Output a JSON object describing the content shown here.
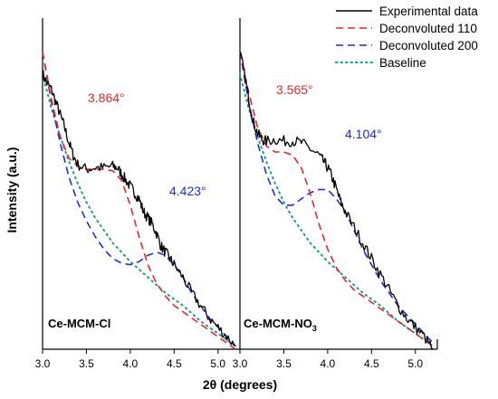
{
  "chart_data": {
    "type": "line",
    "xlabel": "2θ (degrees)",
    "ylabel": "Intensity (a.u.)",
    "colors": {
      "experimental": "#000000",
      "d110": "#e8262b",
      "d200": "#1a2fd6",
      "baseline": "#15a08a"
    },
    "legend": {
      "placement": "top-right",
      "entries": [
        {
          "key": "experimental",
          "label": "Experimental data",
          "style": "solid"
        },
        {
          "key": "d110",
          "label": "Deconvoluted 110",
          "style": "dashed"
        },
        {
          "key": "d200",
          "label": "Deconvoluted 200",
          "style": "dashed"
        },
        {
          "key": "baseline",
          "label": "Baseline",
          "style": "dotted"
        }
      ]
    },
    "panels": [
      {
        "title": "Ce-MCM-Cl",
        "xlim": [
          3.0,
          5.25
        ],
        "xticks": [
          "3.0",
          "3.5",
          "4.0",
          "4.5",
          "5.0"
        ],
        "xtick_values": [
          3.0,
          3.5,
          4.0,
          4.5,
          5.0
        ],
        "peak_110": {
          "label": "3.864°",
          "x": 3.864
        },
        "peak_200": {
          "label": "4.423°",
          "x": 4.423
        },
        "series": {
          "experimental": {
            "x": [
              3.0,
              3.05,
              3.1,
              3.15,
              3.2,
              3.25,
              3.3,
              3.35,
              3.4,
              3.5,
              3.6,
              3.7,
              3.8,
              3.85,
              3.9,
              3.95,
              4.0,
              4.05,
              4.1,
              4.15,
              4.2,
              4.25,
              4.3,
              4.35,
              4.4,
              4.45,
              4.5,
              4.6,
              4.7,
              4.8,
              4.9,
              5.0,
              5.1,
              5.2
            ],
            "y": [
              0.88,
              0.85,
              0.83,
              0.79,
              0.75,
              0.71,
              0.66,
              0.62,
              0.59,
              0.575,
              0.58,
              0.58,
              0.585,
              0.58,
              0.56,
              0.54,
              0.52,
              0.5,
              0.48,
              0.44,
              0.42,
              0.4,
              0.37,
              0.33,
              0.31,
              0.29,
              0.27,
              0.23,
              0.18,
              0.14,
              0.1,
              0.07,
              0.04,
              0.01
            ]
          },
          "d110": {
            "x": [
              3.0,
              3.1,
              3.2,
              3.3,
              3.4,
              3.5,
              3.6,
              3.7,
              3.8,
              3.9,
              4.0,
              4.1,
              4.2,
              4.3,
              4.4,
              4.5,
              4.6,
              4.7,
              4.8,
              4.9,
              5.0,
              5.1,
              5.2
            ],
            "y": [
              0.95,
              0.8,
              0.68,
              0.61,
              0.585,
              0.575,
              0.575,
              0.575,
              0.57,
              0.54,
              0.46,
              0.36,
              0.27,
              0.21,
              0.17,
              0.14,
              0.12,
              0.1,
              0.08,
              0.06,
              0.04,
              0.02,
              0.0
            ]
          },
          "d200": {
            "x": [
              3.0,
              3.1,
              3.2,
              3.3,
              3.4,
              3.5,
              3.6,
              3.7,
              3.8,
              3.9,
              4.0,
              4.1,
              4.2,
              4.3,
              4.4,
              4.5,
              4.6,
              4.7,
              4.8,
              4.9,
              5.0,
              5.1,
              5.2
            ],
            "y": [
              0.95,
              0.79,
              0.66,
              0.55,
              0.47,
              0.41,
              0.36,
              0.32,
              0.29,
              0.275,
              0.27,
              0.28,
              0.3,
              0.31,
              0.3,
              0.27,
              0.23,
              0.18,
              0.14,
              0.1,
              0.07,
              0.04,
              0.01
            ]
          },
          "baseline": {
            "x": [
              3.0,
              3.1,
              3.2,
              3.3,
              3.4,
              3.5,
              3.6,
              3.7,
              3.8,
              3.9,
              4.0,
              4.2,
              4.4,
              4.6,
              4.8,
              5.0,
              5.2
            ],
            "y": [
              0.88,
              0.77,
              0.68,
              0.6,
              0.53,
              0.47,
              0.42,
              0.38,
              0.34,
              0.31,
              0.28,
              0.23,
              0.18,
              0.14,
              0.09,
              0.05,
              0.01
            ]
          }
        }
      },
      {
        "title": "Ce-MCM-NO",
        "title_subscript": "3",
        "xlim": [
          3.0,
          5.25
        ],
        "xticks": [
          "3.0",
          "3.5",
          "4.0",
          "4.5",
          "5.0"
        ],
        "xtick_values": [
          3.0,
          3.5,
          4.0,
          4.5,
          5.0
        ],
        "peak_110": {
          "label": "3.565°",
          "x": 3.565
        },
        "peak_200": {
          "label": "4.104°",
          "x": 4.104
        },
        "series": {
          "experimental": {
            "x": [
              3.0,
              3.05,
              3.1,
              3.15,
              3.2,
              3.25,
              3.3,
              3.4,
              3.5,
              3.6,
              3.7,
              3.8,
              3.9,
              3.95,
              4.0,
              4.05,
              4.1,
              4.15,
              4.2,
              4.3,
              4.4,
              4.5,
              4.6,
              4.7,
              4.8,
              4.9,
              5.0,
              5.1,
              5.2
            ],
            "y": [
              0.95,
              0.88,
              0.8,
              0.73,
              0.69,
              0.67,
              0.665,
              0.67,
              0.665,
              0.665,
              0.66,
              0.64,
              0.62,
              0.6,
              0.58,
              0.55,
              0.51,
              0.47,
              0.44,
              0.39,
              0.34,
              0.29,
              0.24,
              0.19,
              0.14,
              0.1,
              0.07,
              0.04,
              0.0
            ]
          },
          "d110": {
            "x": [
              3.0,
              3.1,
              3.2,
              3.3,
              3.4,
              3.5,
              3.6,
              3.7,
              3.8,
              3.9,
              4.0,
              4.1,
              4.2,
              4.3,
              4.4,
              4.5,
              4.6,
              4.7,
              4.8,
              4.9,
              5.0,
              5.1,
              5.2
            ],
            "y": [
              0.95,
              0.82,
              0.71,
              0.65,
              0.63,
              0.63,
              0.62,
              0.58,
              0.5,
              0.4,
              0.32,
              0.26,
              0.22,
              0.19,
              0.17,
              0.15,
              0.13,
              0.11,
              0.09,
              0.07,
              0.05,
              0.03,
              0.01
            ]
          },
          "d200": {
            "x": [
              3.0,
              3.1,
              3.2,
              3.3,
              3.4,
              3.5,
              3.6,
              3.7,
              3.8,
              3.9,
              4.0,
              4.1,
              4.2,
              4.3,
              4.4,
              4.5,
              4.6,
              4.7,
              4.8,
              4.9,
              5.0,
              5.1,
              5.2
            ],
            "y": [
              0.95,
              0.79,
              0.66,
              0.56,
              0.49,
              0.46,
              0.46,
              0.48,
              0.5,
              0.51,
              0.51,
              0.48,
              0.44,
              0.38,
              0.32,
              0.27,
              0.22,
              0.18,
              0.14,
              0.11,
              0.08,
              0.05,
              0.02
            ]
          },
          "baseline": {
            "x": [
              3.0,
              3.1,
              3.2,
              3.3,
              3.4,
              3.5,
              3.6,
              3.7,
              3.8,
              3.9,
              4.0,
              4.2,
              4.4,
              4.6,
              4.8,
              5.0,
              5.2
            ],
            "y": [
              0.88,
              0.77,
              0.68,
              0.6,
              0.53,
              0.47,
              0.42,
              0.38,
              0.34,
              0.31,
              0.28,
              0.23,
              0.18,
              0.14,
              0.09,
              0.05,
              0.01
            ]
          }
        }
      }
    ]
  }
}
